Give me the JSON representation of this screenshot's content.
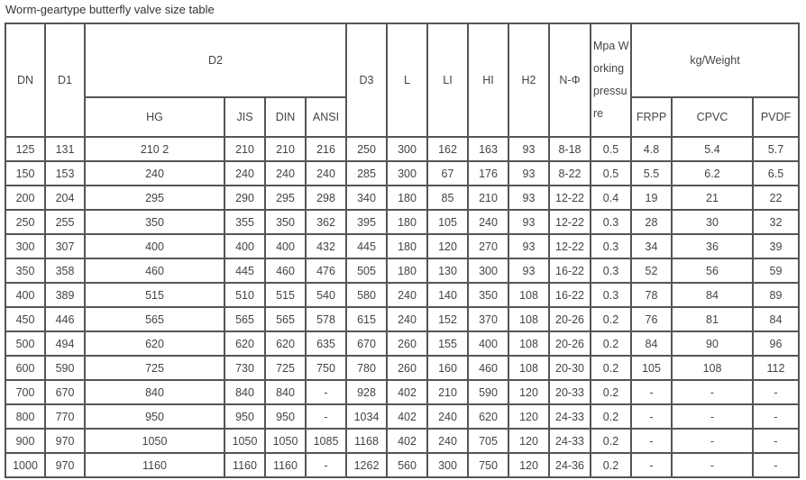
{
  "title": "Worm-geartype butterfly valve size table",
  "headers": {
    "dn": "DN",
    "d1": "D1",
    "d2": "D2",
    "d3": "D3",
    "l": "L",
    "li": "LI",
    "hi": "HI",
    "h2": "H2",
    "n_phi": "N-Φ",
    "mpa": "Mpa Working pressure",
    "weight": "kg/Weight",
    "d2_sub": [
      "HG",
      "JIS",
      "DIN",
      "ANSI"
    ],
    "weight_sub": [
      "FRPP",
      "CPVC",
      "PVDF"
    ]
  },
  "rows": [
    [
      "125",
      "131",
      "210 2",
      "210",
      "210",
      "216",
      "250",
      "300",
      "162",
      "163",
      "93",
      "8-18",
      "0.5",
      "4.8",
      "5.4",
      "5.7"
    ],
    [
      "150",
      "153",
      "240",
      "240",
      "240",
      "240",
      "285",
      "300",
      "67",
      "176",
      "93",
      "8-22",
      "0.5",
      "5.5",
      "6.2",
      "6.5"
    ],
    [
      "200",
      "204",
      "295",
      "290",
      "295",
      "298",
      "340",
      "180",
      "85",
      "210",
      "93",
      "12-22",
      "0.4",
      "19",
      "21",
      "22"
    ],
    [
      "250",
      "255",
      "350",
      "355",
      "350",
      "362",
      "395",
      "180",
      "105",
      "240",
      "93",
      "12-22",
      "0.3",
      "28",
      "30",
      "32"
    ],
    [
      "300",
      "307",
      "400",
      "400",
      "400",
      "432",
      "445",
      "180",
      "120",
      "270",
      "93",
      "12-22",
      "0.3",
      "34",
      "36",
      "39"
    ],
    [
      "350",
      "358",
      "460",
      "445",
      "460",
      "476",
      "505",
      "180",
      "130",
      "300",
      "93",
      "16-22",
      "0.3",
      "52",
      "56",
      "59"
    ],
    [
      "400",
      "389",
      "515",
      "510",
      "515",
      "540",
      "580",
      "240",
      "140",
      "350",
      "108",
      "16-22",
      "0.3",
      "78",
      "84",
      "89"
    ],
    [
      "450",
      "446",
      "565",
      "565",
      "565",
      "578",
      "615",
      "240",
      "152",
      "370",
      "108",
      "20-26",
      "0.2",
      "76",
      "81",
      "84"
    ],
    [
      "500",
      "494",
      "620",
      "620",
      "620",
      "635",
      "670",
      "260",
      "155",
      "400",
      "108",
      "20-26",
      "0.2",
      "84",
      "90",
      "96"
    ],
    [
      "600",
      "590",
      "725",
      "730",
      "725",
      "750",
      "780",
      "260",
      "160",
      "460",
      "108",
      "20-30",
      "0.2",
      "105",
      "108",
      "112"
    ],
    [
      "700",
      "670",
      "840",
      "840",
      "840",
      "-",
      "928",
      "402",
      "210",
      "590",
      "120",
      "20-33",
      "0.2",
      "-",
      "-",
      "-"
    ],
    [
      "800",
      "770",
      "950",
      "950",
      "950",
      "-",
      "1034",
      "402",
      "240",
      "620",
      "120",
      "24-33",
      "0.2",
      "-",
      "-",
      "-"
    ],
    [
      "900",
      "970",
      "1050",
      "1050",
      "1050",
      "1085",
      "1168",
      "402",
      "240",
      "705",
      "120",
      "24-33",
      "0.2",
      "-",
      "-",
      "-"
    ],
    [
      "1000",
      "970",
      "1160",
      "1160",
      "1160",
      "-",
      "1262",
      "560",
      "300",
      "750",
      "120",
      "24-36",
      "0.2",
      "-",
      "-",
      "-"
    ]
  ]
}
